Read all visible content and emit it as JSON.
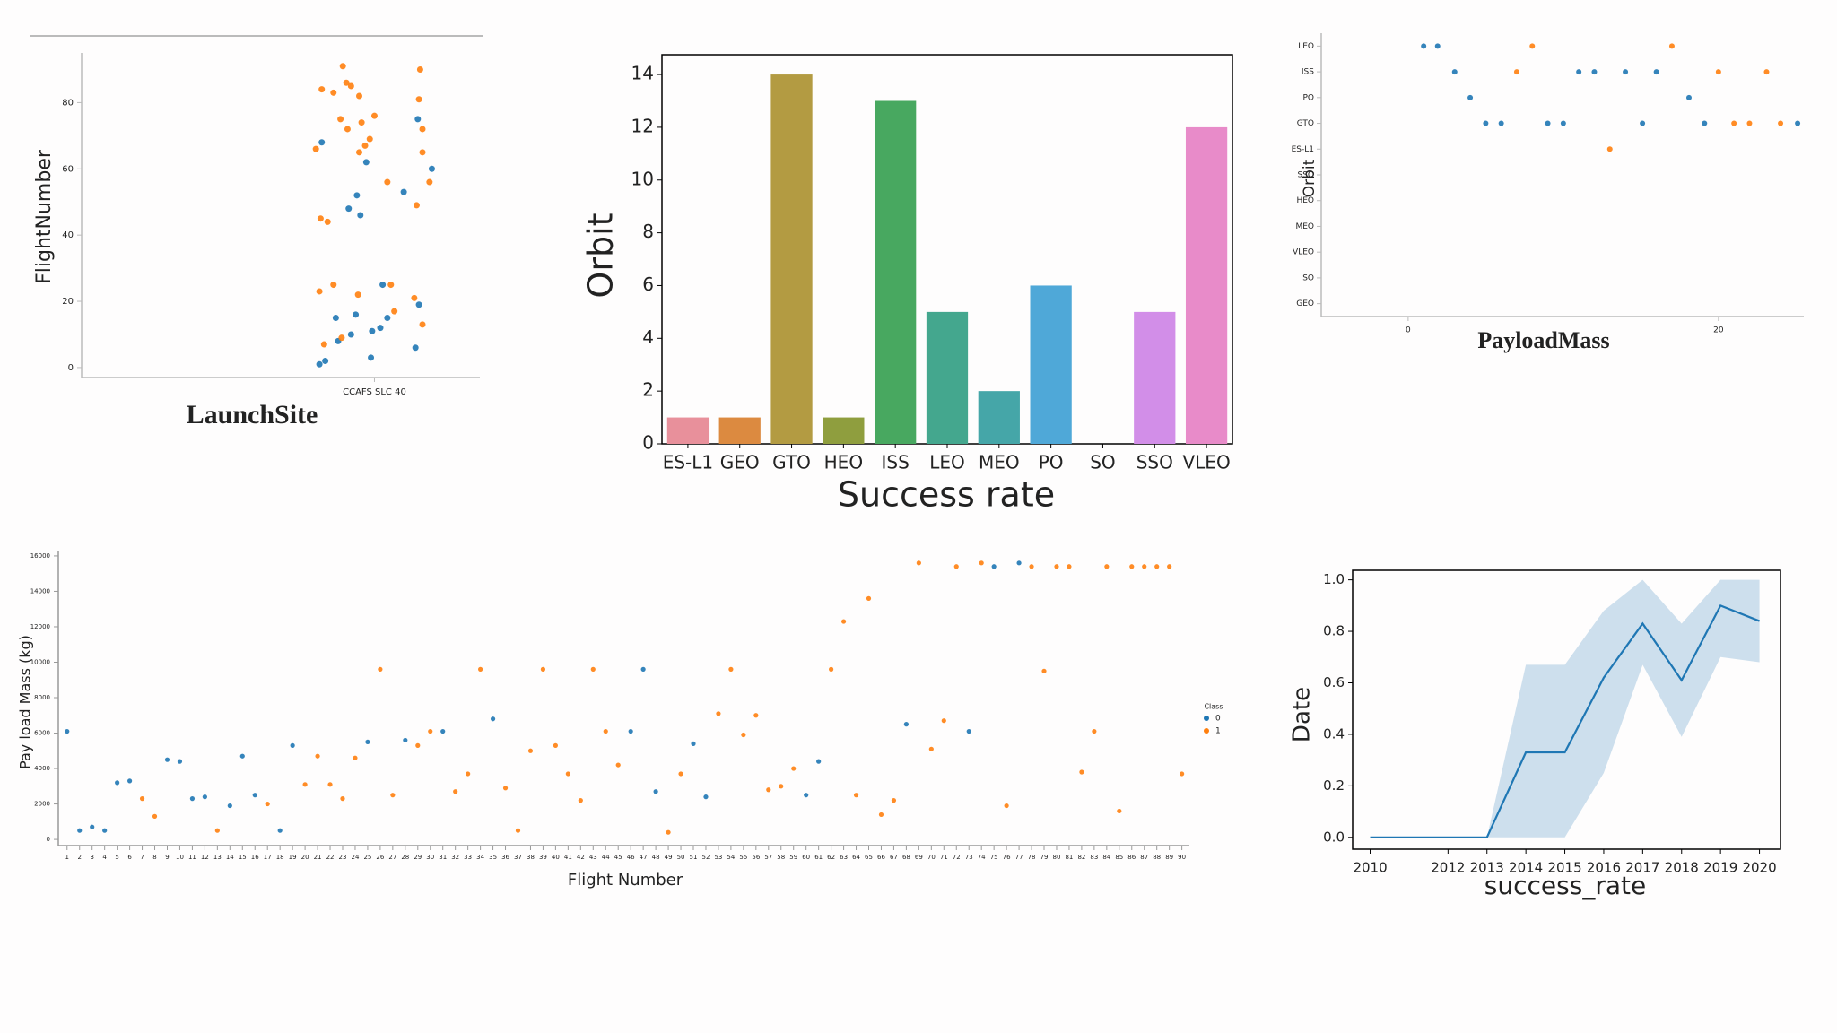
{
  "chart_data": [
    {
      "type": "scatter",
      "xlabel": "LaunchSite",
      "ylabel": "FlightNumber",
      "xlim": [
        -2.5,
        0.9
      ],
      "ylim": [
        -3,
        95
      ],
      "xticks": [
        {
          "value": 0,
          "label": "CCAFS SLC 40"
        }
      ],
      "yticks": [
        0,
        20,
        40,
        60,
        80
      ],
      "series": [
        {
          "color": "#1f77b4",
          "x": [
            -0.45,
            -0.07,
            -0.15,
            -0.22,
            -0.12,
            0.37,
            0.49,
            0.25,
            -0.33,
            -0.16,
            -0.31,
            -0.2,
            -0.02,
            0.05,
            0.11,
            0.07,
            -0.03,
            -0.47,
            -0.42,
            0.38,
            0.35
          ],
          "values": [
            68,
            62,
            52,
            48,
            46,
            75,
            60,
            53,
            15,
            16,
            8,
            10,
            11,
            12,
            15,
            25,
            3,
            1,
            2,
            19,
            6
          ]
        },
        {
          "color": "#ff7f0e",
          "x": [
            -0.27,
            -0.45,
            -0.24,
            -0.2,
            -0.35,
            -0.13,
            0,
            0.38,
            -0.29,
            -0.23,
            -0.11,
            -0.04,
            -0.08,
            -0.13,
            0.11,
            -0.46,
            -0.4,
            0.39,
            0.41,
            0.41,
            0.47,
            0.36,
            -0.5,
            -0.47,
            -0.35,
            -0.14,
            0.14,
            0.34,
            0.41,
            -0.43,
            -0.28,
            0.17
          ],
          "values": [
            91,
            84,
            86,
            85,
            83,
            82,
            76,
            81,
            75,
            72,
            74,
            69,
            67,
            65,
            56,
            45,
            44,
            90,
            72,
            65,
            56,
            49,
            66,
            23,
            25,
            22,
            25,
            21,
            13,
            7,
            9,
            17
          ]
        }
      ]
    },
    {
      "type": "bar",
      "xlabel": "Success rate",
      "ylabel": "Orbit",
      "categories": [
        "ES-L1",
        "GEO",
        "GTO",
        "HEO",
        "ISS",
        "LEO",
        "MEO",
        "PO",
        "SO",
        "SSO",
        "VLEO"
      ],
      "values": [
        1,
        1,
        14,
        1,
        13,
        5,
        2,
        6,
        0,
        5,
        12
      ],
      "colors": [
        "#e8909b",
        "#dc8a40",
        "#b39b42",
        "#8f9e3e",
        "#48a860",
        "#44a78e",
        "#45a6a8",
        "#4fa8d8",
        "#a08ee8",
        "#d28ee8",
        "#e88bc9"
      ],
      "ylim": [
        0,
        14.75
      ],
      "yticks": [
        0,
        2,
        4,
        6,
        8,
        10,
        12,
        14
      ]
    },
    {
      "type": "scatter",
      "xlabel": "PayloadMass",
      "ylabel": "Orbit",
      "xlim": [
        -5.6,
        25.5
      ],
      "xticks": [
        0,
        20
      ],
      "ycategories": [
        "LEO",
        "ISS",
        "PO",
        "GTO",
        "ES-L1",
        "SSO",
        "HEO",
        "MEO",
        "VLEO",
        "SO",
        "GEO"
      ],
      "series": [
        {
          "color": "#1f77b4",
          "x": [
            1,
            1.9,
            3,
            4,
            5,
            6,
            9,
            10,
            11,
            12,
            14,
            15.1,
            16,
            18.1,
            19.1,
            25.1
          ],
          "values": [
            "LEO",
            "LEO",
            "ISS",
            "PO",
            "GTO",
            "GTO",
            "GTO",
            "GTO",
            "ISS",
            "ISS",
            "ISS",
            "GTO",
            "ISS",
            "PO",
            "GTO",
            "GTO"
          ]
        },
        {
          "color": "#ff7f0e",
          "x": [
            7,
            8,
            13,
            17,
            20,
            21,
            22,
            23.1,
            24
          ],
          "values": [
            "ISS",
            "LEO",
            "ES-L1",
            "LEO",
            "ISS",
            "GTO",
            "GTO",
            "ISS",
            "GTO"
          ]
        }
      ]
    },
    {
      "type": "scatter",
      "xlabel": "Flight Number",
      "ylabel": "Pay load Mass (kg)",
      "legend_title": "Class",
      "legend": "right",
      "xlim": [
        0.3,
        90.6
      ],
      "ylim": [
        -350,
        16300
      ],
      "xticks": [
        1,
        2,
        3,
        4,
        5,
        6,
        7,
        8,
        9,
        10,
        11,
        12,
        13,
        14,
        15,
        16,
        17,
        18,
        19,
        20,
        21,
        22,
        23,
        24,
        25,
        26,
        27,
        28,
        29,
        30,
        31,
        32,
        33,
        34,
        35,
        36,
        37,
        38,
        39,
        40,
        41,
        42,
        43,
        44,
        45,
        46,
        47,
        48,
        49,
        50,
        51,
        52,
        53,
        54,
        55,
        56,
        57,
        58,
        59,
        60,
        61,
        62,
        63,
        64,
        65,
        66,
        67,
        68,
        69,
        70,
        71,
        72,
        73,
        74,
        75,
        76,
        77,
        78,
        79,
        80,
        81,
        82,
        83,
        84,
        85,
        86,
        87,
        88,
        89,
        90
      ],
      "yticks": [
        0,
        2000,
        4000,
        6000,
        8000,
        10000,
        12000,
        14000,
        16000
      ],
      "series": [
        {
          "name": "0",
          "color": "#1f77b4",
          "x": [
            1,
            2,
            3,
            4,
            5,
            6,
            9,
            10,
            11,
            12,
            14,
            15,
            16,
            18,
            19,
            25,
            28,
            31,
            35,
            46,
            47,
            48,
            51,
            52,
            60,
            61,
            68,
            73,
            75,
            77
          ],
          "values": [
            6100,
            500,
            700,
            500,
            3200,
            3300,
            4500,
            4400,
            2300,
            2400,
            1900,
            4700,
            2500,
            500,
            5300,
            5500,
            5600,
            6100,
            6800,
            6100,
            9600,
            2700,
            5400,
            2400,
            2500,
            4400,
            6500,
            6100,
            15400,
            15600
          ]
        },
        {
          "name": "1",
          "color": "#ff7f0e",
          "x": [
            7,
            8,
            13,
            17,
            20,
            21,
            22,
            23,
            24,
            26,
            27,
            29,
            30,
            32,
            33,
            34,
            36,
            37,
            38,
            39,
            40,
            41,
            42,
            43,
            44,
            45,
            49,
            50,
            53,
            54,
            55,
            56,
            57,
            58,
            59,
            62,
            63,
            64,
            65,
            66,
            67,
            69,
            70,
            71,
            72,
            74,
            76,
            78,
            79,
            80,
            81,
            82,
            83,
            84,
            85,
            86,
            87,
            88,
            89,
            90
          ],
          "values": [
            2300,
            1300,
            500,
            2000,
            3100,
            4700,
            3100,
            2300,
            4600,
            9600,
            2500,
            5300,
            6100,
            2700,
            3700,
            9600,
            2900,
            500,
            5000,
            9600,
            5300,
            3700,
            2200,
            9600,
            6100,
            4200,
            400,
            3700,
            7100,
            9600,
            5900,
            7000,
            2800,
            3000,
            4000,
            9600,
            12300,
            2500,
            13600,
            1400,
            2200,
            15600,
            5100,
            6700,
            15400,
            15600,
            1900,
            15400,
            9500,
            15400,
            15400,
            3800,
            6100,
            15400,
            1600,
            15400,
            15400,
            15400,
            15400,
            3700
          ]
        }
      ]
    },
    {
      "type": "line",
      "xlabel": "success_rate",
      "ylabel": "Date",
      "xlim": [
        2009.55,
        2020.54
      ],
      "ylim": [
        -0.046,
        1.037
      ],
      "xticks": [
        2010,
        2012,
        2013,
        2014,
        2015,
        2016,
        2017,
        2018,
        2019,
        2020
      ],
      "yticks": [
        {
          "value": 0,
          "label": "0.0"
        },
        {
          "value": 0.2,
          "label": "0.2"
        },
        {
          "value": 0.4,
          "label": "0.4"
        },
        {
          "value": 0.6,
          "label": "0.6"
        },
        {
          "value": 0.8,
          "label": "0.8"
        },
        {
          "value": 1,
          "label": "1.0"
        }
      ],
      "color": "#1f77b4",
      "band_color": "#c4d9ea",
      "x": [
        2010,
        2011,
        2012,
        2013,
        2014,
        2015,
        2016,
        2017,
        2018,
        2019,
        2020
      ],
      "values": [
        0,
        0,
        0,
        0,
        0.33,
        0.33,
        0.62,
        0.83,
        0.61,
        0.9,
        0.84
      ],
      "lower": [
        0,
        0,
        0,
        0,
        0,
        0,
        0.25,
        0.67,
        0.39,
        0.7,
        0.68
      ],
      "upper": [
        0,
        0,
        0,
        0,
        0.67,
        0.67,
        0.88,
        1,
        0.83,
        1,
        1
      ]
    }
  ]
}
